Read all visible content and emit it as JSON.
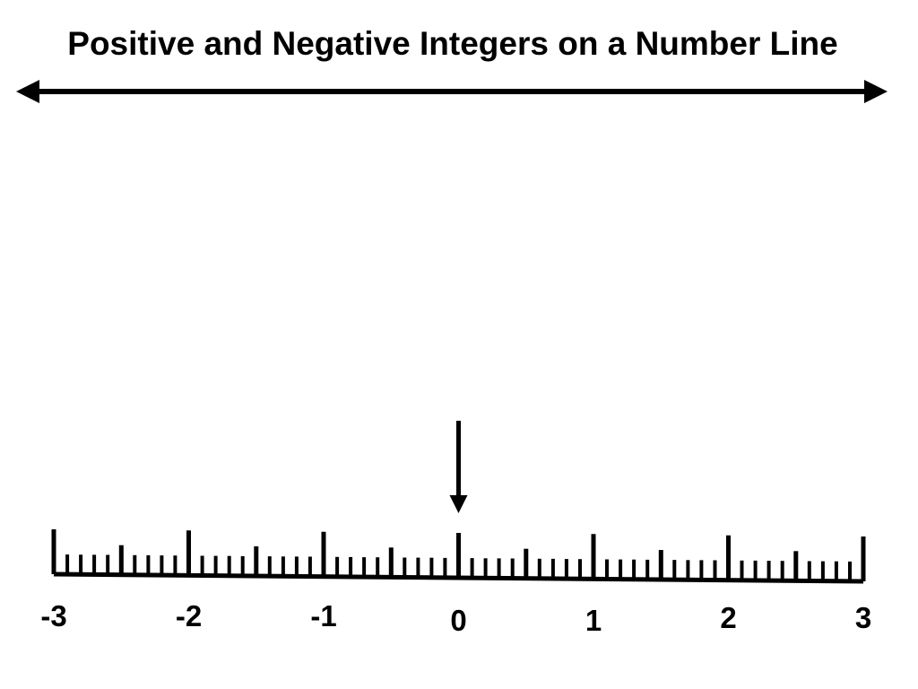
{
  "title": "Positive and Negative Integers on a Number Line",
  "number_line": {
    "min": -3,
    "max": 3,
    "minor_divisions_per_half_unit": 5,
    "labels": [
      "-3",
      "-2",
      "-1",
      "0",
      "1",
      "2",
      "3"
    ],
    "pointer_value": 0
  },
  "colors": {
    "ink": "#000000",
    "background": "#ffffff"
  }
}
